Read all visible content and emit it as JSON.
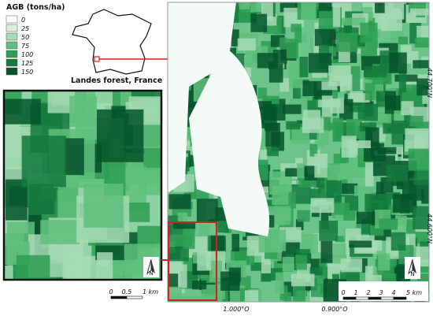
{
  "legend": {
    "title": "AGB (tons/ha)",
    "items": [
      {
        "label": "0",
        "color": "#ffffff"
      },
      {
        "label": "25",
        "color": "#d9f0df"
      },
      {
        "label": "50",
        "color": "#a6dbb4"
      },
      {
        "label": "75",
        "color": "#5fbf7c"
      },
      {
        "label": "100",
        "color": "#2e9e55"
      },
      {
        "label": "125",
        "color": "#137a3c"
      },
      {
        "label": "150",
        "color": "#05542a"
      }
    ]
  },
  "inset": {
    "label": "Landes forest, France"
  },
  "zoom_scale": {
    "ticks": [
      "0",
      "0.5",
      "1 km"
    ]
  },
  "main_scale": {
    "ticks": [
      "0",
      "1",
      "2",
      "3",
      "4",
      "5 km"
    ]
  },
  "coordinates": {
    "lat": [
      "44.700°N",
      "44.600°N"
    ],
    "lon": [
      "1.000°O",
      "0.900°O"
    ]
  },
  "north": "N"
}
